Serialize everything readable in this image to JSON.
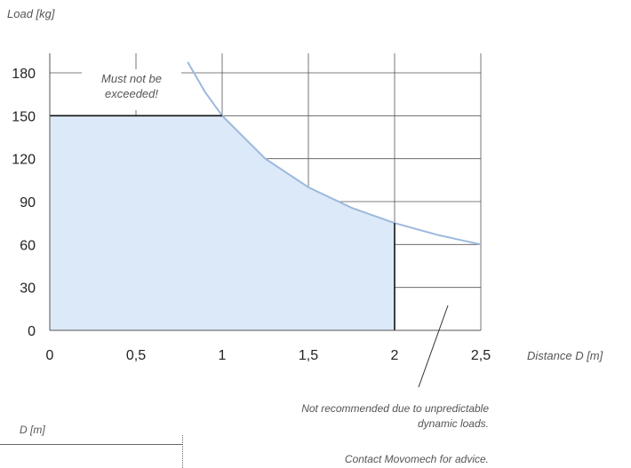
{
  "chart_data": {
    "type": "area",
    "ylabel": "Load [kg]",
    "xlabel": "Distance D [m]",
    "x_ticks": [
      "0",
      "0,5",
      "1",
      "1,5",
      "2",
      "2,5"
    ],
    "x_tick_values": [
      0,
      0.5,
      1,
      1.5,
      2,
      2.5
    ],
    "y_ticks": [
      "0",
      "30",
      "60",
      "90",
      "120",
      "150",
      "180"
    ],
    "y_tick_values": [
      0,
      30,
      60,
      90,
      120,
      150,
      180
    ],
    "xlim": [
      0,
      2.5
    ],
    "ylim": [
      0,
      180
    ],
    "grid": true,
    "curve": {
      "x": [
        0.8,
        0.9,
        1.0,
        1.25,
        1.5,
        1.75,
        2.0,
        2.25,
        2.5
      ],
      "y": [
        187.5,
        166.7,
        150,
        120,
        100,
        85.7,
        75,
        66.7,
        60
      ],
      "color": "#9db9dd"
    },
    "safe_area": {
      "x": [
        0,
        1.0,
        1.25,
        1.5,
        1.75,
        2.0
      ],
      "y": [
        150,
        150,
        120,
        100,
        85.7,
        75
      ],
      "fill": "#dce9f8"
    },
    "annotations": {
      "limit": "Must not be exceeded!",
      "limit_lines": [
        "Must not be",
        "exceeded!"
      ],
      "not_recommended": "Not recommended due to unpredictable dynamic loads.",
      "not_recommended_lines": [
        "Not recommended due to unpredictable",
        "dynamic loads."
      ],
      "advice": "Contact Movomech for advice."
    }
  },
  "footer": {
    "label": "D [m]"
  }
}
